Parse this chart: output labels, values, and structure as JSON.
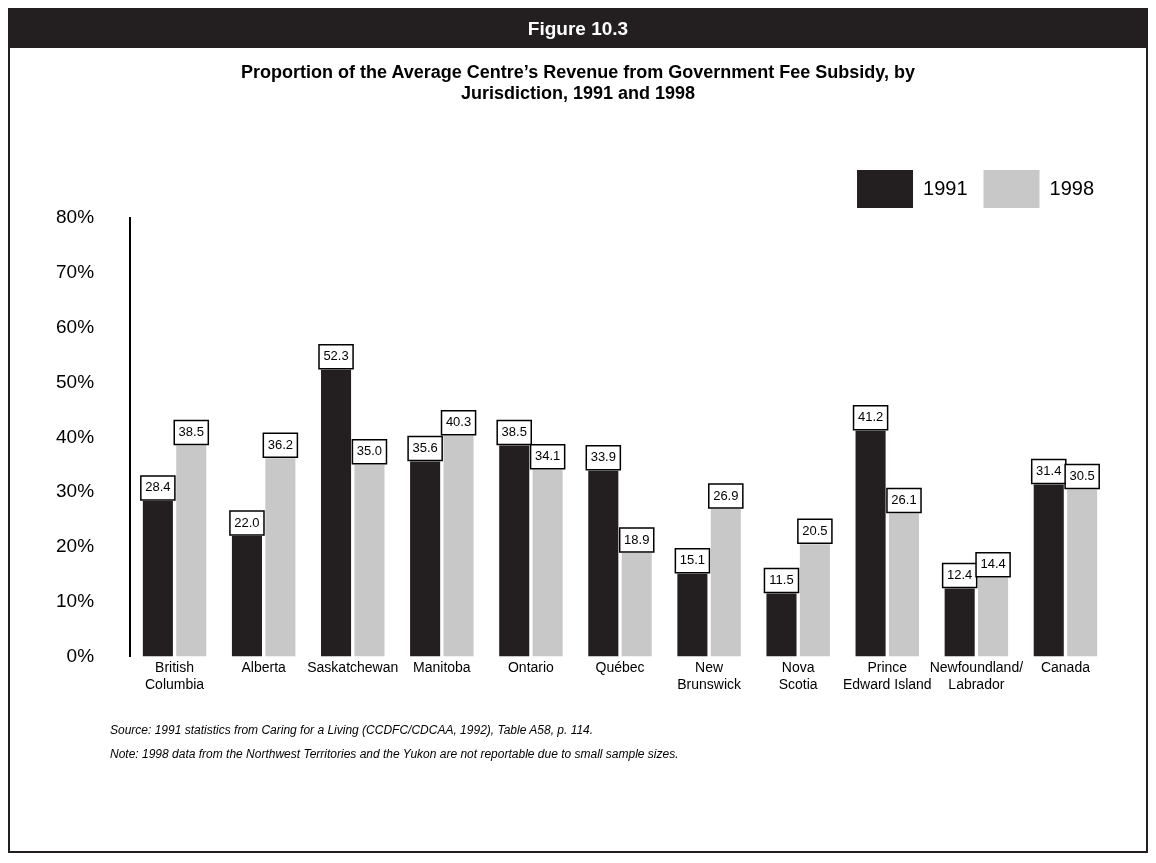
{
  "chart_data": {
    "type": "bar",
    "subtitle": "Figure 10.3",
    "title": "Proportion of the Average Centre’s Revenue from Government Fee Subsidy, by Jurisdiction, 1991 and 1998",
    "categories": [
      "British\nColumbia",
      "Alberta",
      "Saskatchewan",
      "Manitoba",
      "Ontario",
      "Québec",
      "New\nBrunswick",
      "Nova\nScotia",
      "Prince\nEdward Island",
      "Newfoundland/\nLabrador",
      "Canada"
    ],
    "series": [
      {
        "name": "1991",
        "color": "#231f20",
        "values": [
          28.4,
          22.0,
          52.3,
          35.6,
          38.5,
          33.9,
          15.1,
          11.5,
          41.2,
          12.4,
          31.4
        ],
        "value_labels": [
          "28.4",
          "22.0",
          "52.3",
          "35.6",
          "38.5",
          "33.9",
          "15.1",
          "11.5",
          "41.2",
          "12.4",
          "31.4"
        ]
      },
      {
        "name": "1998",
        "color": "#c8c8c8",
        "values": [
          38.5,
          36.2,
          35.0,
          40.3,
          34.1,
          18.9,
          26.9,
          20.5,
          26.1,
          14.4,
          30.5
        ],
        "value_labels": [
          "38.5",
          "36.2",
          "35.0",
          "40.3",
          "34.1",
          "18.9",
          "26.9",
          "20.5",
          "26.1",
          "14.4",
          "30.5"
        ]
      }
    ],
    "ylim": [
      0,
      80
    ],
    "yticks": [
      {
        "value": 0,
        "label": "0%"
      },
      {
        "value": 10,
        "label": "10%"
      },
      {
        "value": 20,
        "label": "20%"
      },
      {
        "value": 30,
        "label": "30%"
      },
      {
        "value": 40,
        "label": "40%"
      },
      {
        "value": 50,
        "label": "50%"
      },
      {
        "value": 60,
        "label": "60%"
      },
      {
        "value": 70,
        "label": "70%"
      },
      {
        "value": 80,
        "label": "80%"
      }
    ],
    "grid": false,
    "legend": "top right",
    "annotations": [
      "Source: 1991 statistics from Caring for a Living (CCDFC/CDCAA, 1992), Table A58, p. 114.",
      "Note: 1998 data from the Northwest Territories and the Yukon are not reportable due to small sample sizes."
    ]
  }
}
